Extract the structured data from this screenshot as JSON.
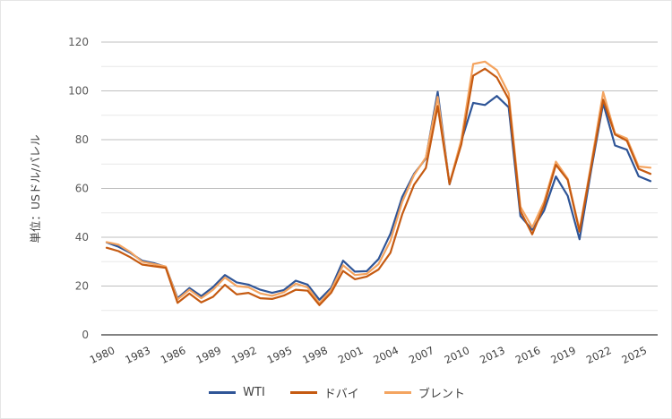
{
  "chart_data": {
    "type": "line",
    "title": "",
    "xlabel": "",
    "ylabel": "単位：USドル/バレル",
    "ylim": [
      0,
      120
    ],
    "yticks": [
      0,
      20,
      40,
      60,
      80,
      100,
      120
    ],
    "grid": true,
    "legend_position": "bottom",
    "x_tick_labels": [
      "1980",
      "1983",
      "1986",
      "1989",
      "1992",
      "1995",
      "1998",
      "2001",
      "2004",
      "2007",
      "2010",
      "2013",
      "2016",
      "2019",
      "2022",
      "2025"
    ],
    "x": [
      1980,
      1981,
      1982,
      1983,
      1984,
      1985,
      1986,
      1987,
      1988,
      1989,
      1990,
      1991,
      1992,
      1993,
      1994,
      1995,
      1996,
      1997,
      1998,
      1999,
      2000,
      2001,
      2002,
      2003,
      2004,
      2005,
      2006,
      2007,
      2008,
      2009,
      2010,
      2011,
      2012,
      2013,
      2014,
      2015,
      2016,
      2017,
      2018,
      2019,
      2020,
      2021,
      2022,
      2023,
      2024,
      2025,
      2026
    ],
    "series": [
      {
        "name": "WTI",
        "color": "#2f5597",
        "values": [
          37.9,
          36.1,
          33.6,
          30.4,
          29.4,
          27.9,
          15.0,
          19.2,
          15.9,
          19.6,
          24.5,
          21.5,
          20.6,
          18.5,
          17.2,
          18.4,
          22.2,
          20.6,
          14.4,
          19.3,
          30.4,
          25.9,
          26.1,
          31.1,
          41.4,
          56.5,
          66.0,
          72.3,
          99.6,
          61.7,
          79.4,
          95.1,
          94.2,
          97.9,
          93.3,
          48.7,
          43.1,
          50.9,
          64.9,
          57.0,
          39.2,
          68.0,
          94.9,
          77.6,
          75.9,
          65.0,
          63.0
        ]
      },
      {
        "name": "ドバイ",
        "color": "#c55a11",
        "values": [
          35.7,
          34.3,
          31.8,
          28.8,
          28.1,
          27.5,
          13.1,
          16.9,
          13.3,
          15.6,
          20.5,
          16.6,
          17.2,
          15.0,
          14.7,
          16.1,
          18.5,
          18.1,
          12.2,
          17.3,
          26.2,
          22.8,
          23.9,
          26.8,
          33.6,
          49.4,
          61.5,
          68.4,
          93.8,
          61.8,
          78.1,
          106.2,
          109.1,
          105.5,
          96.6,
          50.8,
          41.2,
          53.1,
          69.7,
          63.5,
          42.3,
          69.2,
          96.4,
          82.1,
          79.6,
          68.0,
          66.0
        ]
      },
      {
        "name": "ブレント",
        "color": "#f4a460",
        "values": [
          38.0,
          37.0,
          34.0,
          30.0,
          29.0,
          28.0,
          14.5,
          18.5,
          15.0,
          18.5,
          23.5,
          20.0,
          19.5,
          17.0,
          16.0,
          17.5,
          21.0,
          19.5,
          13.0,
          18.5,
          28.5,
          24.5,
          25.0,
          29.0,
          38.5,
          54.5,
          65.5,
          72.7,
          97.5,
          62.0,
          80.0,
          111.0,
          112.0,
          108.5,
          99.0,
          52.5,
          44.0,
          54.5,
          71.0,
          64.0,
          43.0,
          70.5,
          99.5,
          82.5,
          80.5,
          69.0,
          68.5
        ]
      }
    ]
  },
  "legend": {
    "items": [
      {
        "label": "WTI",
        "color": "#2f5597"
      },
      {
        "label": "ドバイ",
        "color": "#c55a11"
      },
      {
        "label": "ブレント",
        "color": "#f4a460"
      }
    ]
  },
  "colors": {
    "grid_major": "#bfbfbf",
    "grid_minor": "#e8e8e8",
    "axis": "#595959"
  }
}
